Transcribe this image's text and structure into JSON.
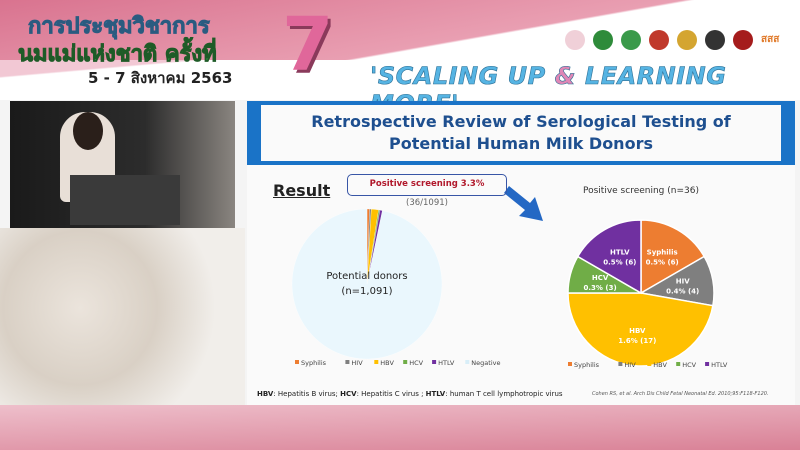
{
  "header": {
    "title_line1": "การประชุมวิชาการ",
    "title_line2": "นมแม่แห่งชาติ ครั้งที่",
    "number": "7",
    "dates": "5 - 7 สิงหาคม 2563",
    "slogan_part1": "'SCALING UP ",
    "slogan_amp": "&",
    "slogan_part2": " LEARNING MORE'",
    "logo_text": "สสส"
  },
  "slide": {
    "title_line1": "Retrospective Review of Serological Testing of",
    "title_line2": "Potential Human Milk Donors",
    "result_label": "Result",
    "callout_bold": "Positive screening 3.3%",
    "callout_rest": " (36/1091)",
    "footnote": [
      {
        "abbr": "HBV",
        "text": ": Hepatitis B virus; "
      },
      {
        "abbr": "HCV",
        "text": ": Hepatitis C virus ; "
      },
      {
        "abbr": "HTLV",
        "text": ": human T cell lymphotropic virus"
      }
    ],
    "citation": "Cohen RS, et al. Arch Dis Child Fetal Neonatal Ed. 2010;95:F118-F120."
  },
  "colors": {
    "Syphilis": "#ed7d31",
    "HIV": "#7f7f7f",
    "HBV": "#ffc000",
    "HCV": "#70ad47",
    "HTLV": "#7030a0",
    "Negative": "#eaf7fd",
    "banner": "#1a73c7"
  },
  "chart_data": [
    {
      "type": "pie",
      "center_label_1": "Potential donors",
      "center_label_2": "(n=1,091)",
      "categories": [
        "Syphilis",
        "HIV",
        "HBV",
        "HCV",
        "HTLV",
        "Negative"
      ],
      "values": [
        6,
        4,
        17,
        3,
        6,
        1055
      ],
      "legend": "bottom"
    },
    {
      "type": "pie",
      "title": "Positive screening (n=36)",
      "categories": [
        "Syphilis",
        "HIV",
        "HBV",
        "HCV",
        "HTLV"
      ],
      "values": [
        6,
        4,
        17,
        3,
        6
      ],
      "labels": [
        "0.5% (6)",
        "0.4% (4)",
        "1.6% (17)",
        "0.3% (3)",
        "0.5% (6)"
      ],
      "legend": "bottom"
    }
  ]
}
